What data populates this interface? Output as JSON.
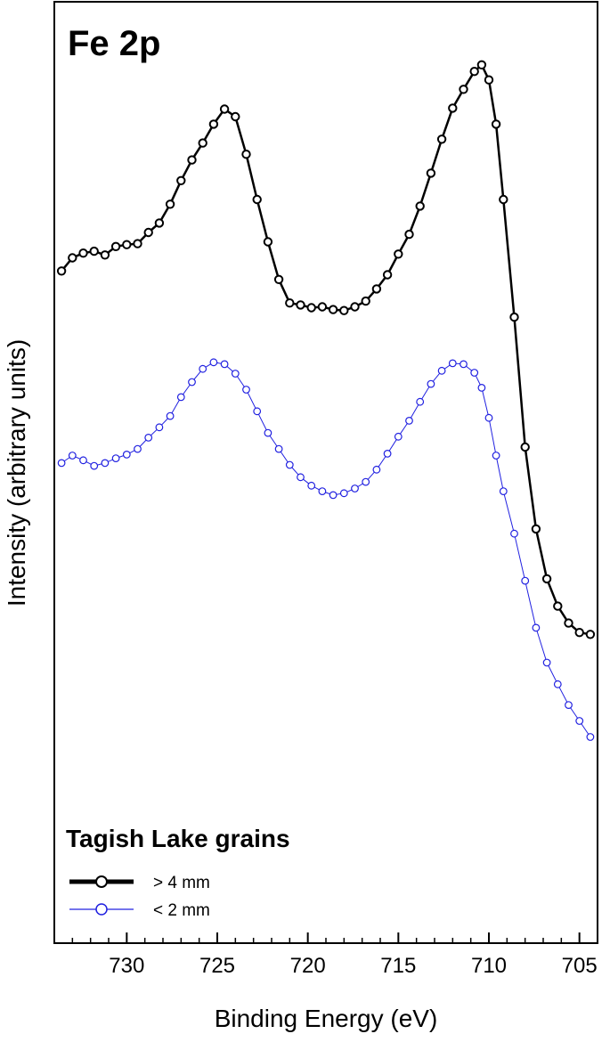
{
  "chart_data": {
    "type": "scatter",
    "title": "Fe 2p",
    "xlabel": "Binding Energy (eV)",
    "ylabel": "Intensity (arbitrary units)",
    "x_reversed": true,
    "xlim": [
      734,
      704
    ],
    "ylim": [
      0,
      100
    ],
    "xticks": [
      730,
      725,
      720,
      715,
      710,
      705
    ],
    "xtick_labels": [
      "730",
      "725",
      "720",
      "715",
      "710",
      "705"
    ],
    "y_ticks_shown": false,
    "grid": false,
    "legend": {
      "title": "Tagish Lake grains",
      "position": "bottom-left"
    },
    "series": [
      {
        "name": "> 4 mm",
        "color": "#000000",
        "marker": "open-circle",
        "line": "thick",
        "x": [
          733.6,
          733.0,
          732.4,
          731.8,
          731.2,
          730.6,
          730.0,
          729.4,
          728.8,
          728.2,
          727.6,
          727.0,
          726.4,
          725.8,
          725.2,
          724.6,
          724.0,
          723.4,
          722.8,
          722.2,
          721.6,
          721.0,
          720.4,
          719.8,
          719.2,
          718.6,
          718.0,
          717.4,
          716.8,
          716.2,
          715.6,
          715.0,
          714.4,
          713.8,
          713.2,
          712.6,
          712.0,
          711.4,
          710.8,
          710.4,
          710.0,
          709.6,
          709.2,
          708.6,
          708.0,
          707.4,
          706.8,
          706.2,
          705.6,
          705.0,
          704.4
        ],
        "y": [
          71.4,
          72.8,
          73.3,
          73.5,
          73.1,
          74.0,
          74.2,
          74.3,
          75.5,
          76.5,
          78.5,
          81.0,
          83.2,
          85.0,
          87.0,
          88.6,
          87.8,
          83.8,
          79.0,
          74.5,
          70.5,
          68.0,
          67.8,
          67.5,
          67.6,
          67.3,
          67.2,
          67.6,
          68.2,
          69.5,
          71.0,
          73.2,
          75.3,
          78.3,
          81.8,
          85.4,
          88.7,
          90.7,
          92.6,
          93.3,
          91.7,
          87.0,
          79.0,
          66.5,
          52.7,
          44.0,
          38.7,
          35.8,
          34.0,
          33.0,
          32.8
        ]
      },
      {
        "name": "< 2 mm",
        "color": "#2020e0",
        "marker": "open-circle",
        "line": "thin",
        "x": [
          733.6,
          733.0,
          732.4,
          731.8,
          731.2,
          730.6,
          730.0,
          729.4,
          728.8,
          728.2,
          727.6,
          727.0,
          726.4,
          725.8,
          725.2,
          724.6,
          724.0,
          723.4,
          722.8,
          722.2,
          721.6,
          721.0,
          720.4,
          719.8,
          719.2,
          718.6,
          718.0,
          717.4,
          716.8,
          716.2,
          715.6,
          715.0,
          714.4,
          713.8,
          713.2,
          712.6,
          712.0,
          711.4,
          710.8,
          710.4,
          710.0,
          709.6,
          709.2,
          708.6,
          708.0,
          707.4,
          706.8,
          706.2,
          705.6,
          705.0,
          704.4
        ],
        "y": [
          51.0,
          51.8,
          51.3,
          50.7,
          51.0,
          51.5,
          51.9,
          52.5,
          53.7,
          54.8,
          56.0,
          58.0,
          59.6,
          61.0,
          61.7,
          61.5,
          60.5,
          58.8,
          56.5,
          54.2,
          52.5,
          50.8,
          49.5,
          48.6,
          48.0,
          47.6,
          47.8,
          48.3,
          49.0,
          50.3,
          52.0,
          53.8,
          55.5,
          57.5,
          59.4,
          60.8,
          61.6,
          61.5,
          60.6,
          59.0,
          55.8,
          51.8,
          48.0,
          43.5,
          38.5,
          33.5,
          29.8,
          27.5,
          25.3,
          23.6,
          21.9
        ]
      }
    ]
  }
}
